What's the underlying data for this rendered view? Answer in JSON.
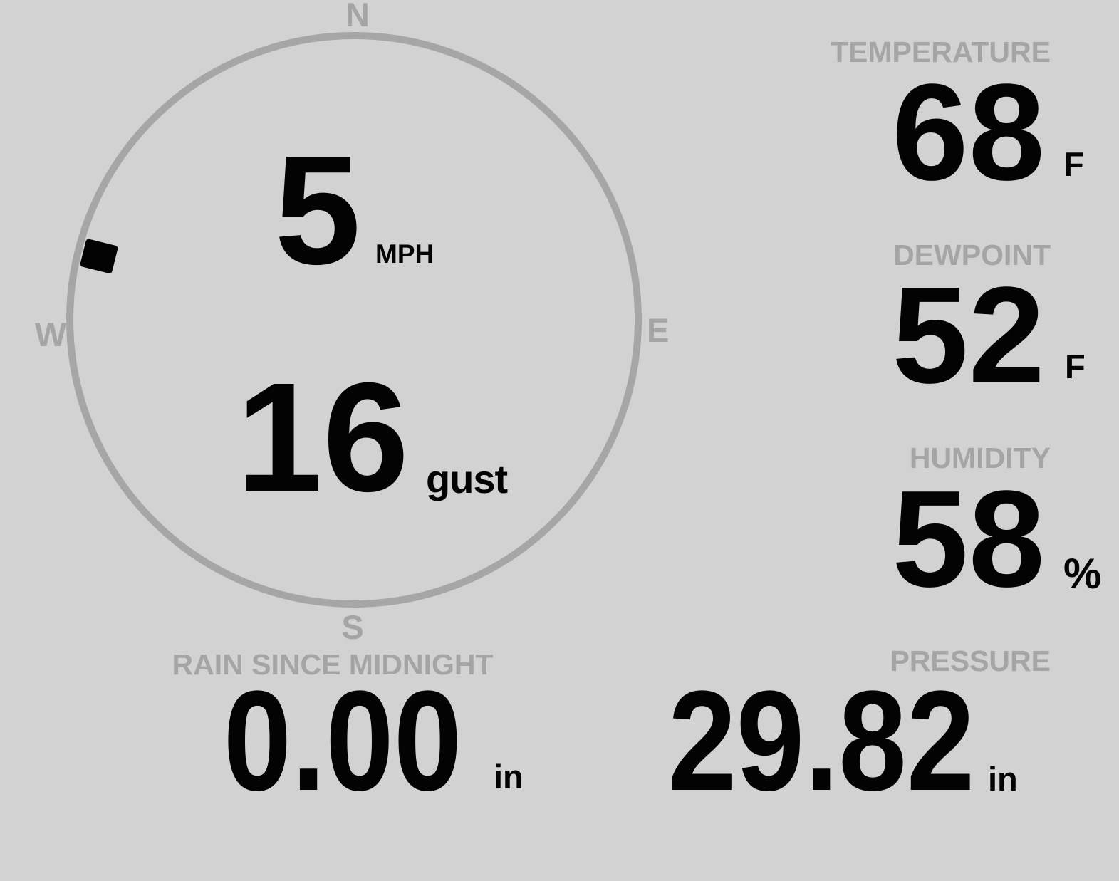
{
  "colors": {
    "background": "#d2d2d2",
    "muted_gray": "#a5a5a5",
    "ink": "#030303"
  },
  "wind": {
    "speed": "5",
    "speed_unit": "MPH",
    "gust": "16",
    "gust_label": "gust",
    "direction_degrees": 284,
    "compass": {
      "north": "N",
      "east": "E",
      "south": "S",
      "west": "W"
    }
  },
  "metrics": {
    "temperature": {
      "label": "TEMPERATURE",
      "value": "68",
      "unit": "F"
    },
    "dewpoint": {
      "label": "DEWPOINT",
      "value": "52",
      "unit": "F"
    },
    "humidity": {
      "label": "HUMIDITY",
      "value": "58",
      "unit": "%"
    },
    "rain": {
      "label": "RAIN SINCE MIDNIGHT",
      "value": "0.00",
      "unit": "in"
    },
    "pressure": {
      "label": "PRESSURE",
      "value": "29.82",
      "unit": "in"
    }
  }
}
